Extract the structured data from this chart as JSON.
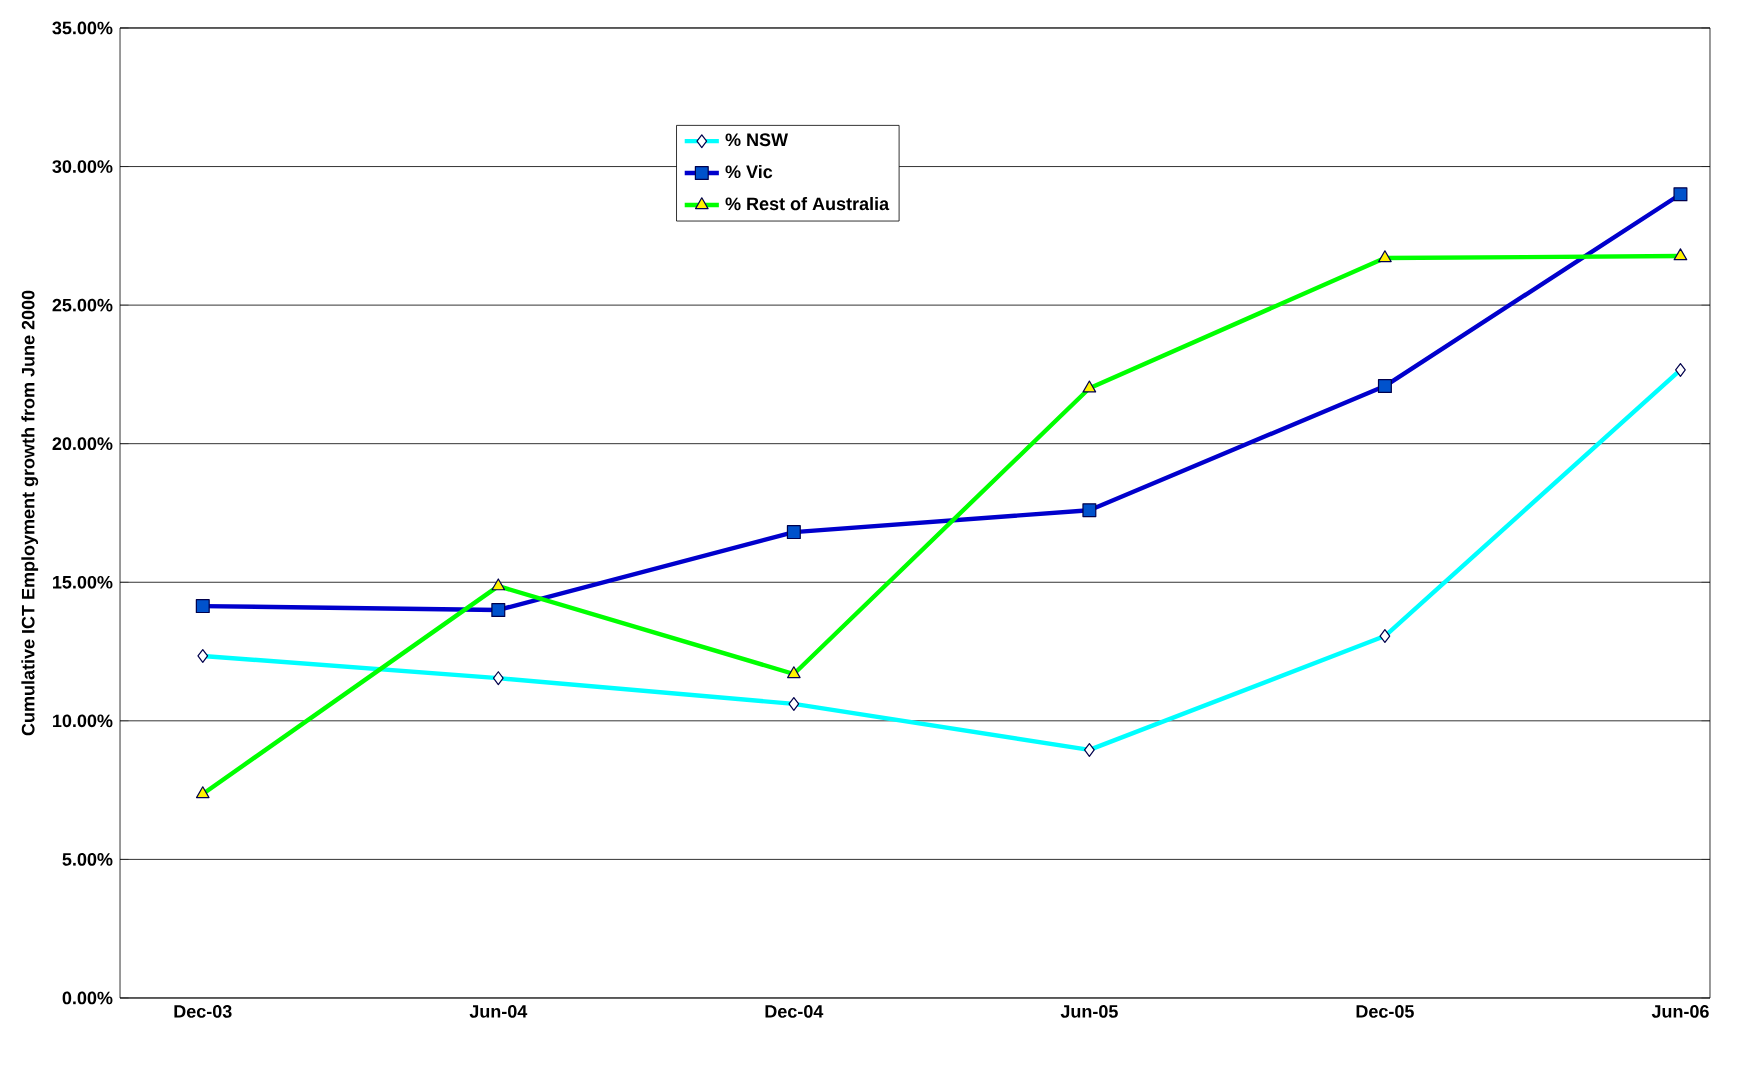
{
  "chart_data": {
    "type": "line",
    "ylabel": "Cumulative ICT Employment growth from June 2000",
    "categories": [
      "Dec-03",
      "Jun-04",
      "Dec-04",
      "Jun-05",
      "Dec-05",
      "Jun-06"
    ],
    "series": [
      {
        "name": "% NSW",
        "color": "#00ffff",
        "marker": "diamond",
        "values": [
          12.34,
          11.54,
          10.61,
          8.95,
          13.06,
          22.66
        ]
      },
      {
        "name": "% Vic",
        "color": "#0000cc",
        "marker": "square",
        "values": [
          14.14,
          14.0,
          16.81,
          17.6,
          22.08,
          29.0
        ]
      },
      {
        "name": "% Rest of Australia",
        "color": "#00ff00",
        "marker": "triangle",
        "values": [
          7.36,
          14.86,
          11.69,
          22.0,
          26.7,
          26.77
        ]
      }
    ],
    "ylim": [
      0,
      35
    ],
    "yticks": [
      {
        "value": 0,
        "label": "0.00%"
      },
      {
        "value": 5,
        "label": "5.00%"
      },
      {
        "value": 10,
        "label": "10.00%"
      },
      {
        "value": 15,
        "label": "15.00%"
      },
      {
        "value": 20,
        "label": "20.00%"
      },
      {
        "value": 25,
        "label": "25.00%"
      },
      {
        "value": 30,
        "label": "30.00%"
      },
      {
        "value": 35,
        "label": "35.00%"
      }
    ],
    "grid": "y",
    "legend": "top",
    "line_style": "solid"
  }
}
